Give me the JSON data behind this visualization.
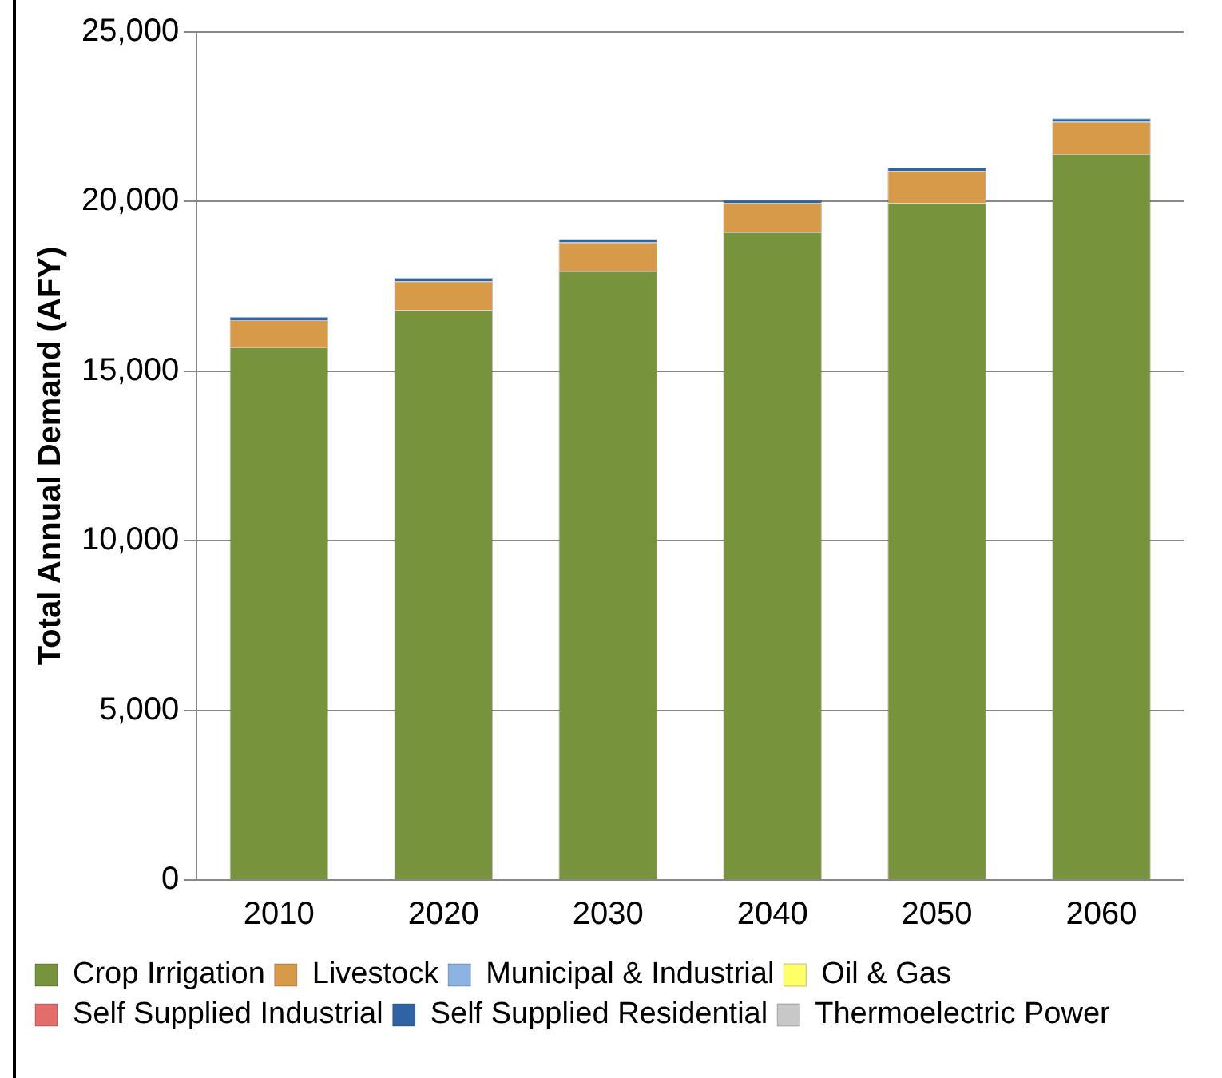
{
  "chart_data": {
    "type": "bar",
    "stacked": true,
    "ylabel": "Total Annual Demand (AFY)",
    "categories": [
      "2010",
      "2020",
      "2030",
      "2040",
      "2050",
      "2060"
    ],
    "series": [
      {
        "name": "Crop Irrigation",
        "color": "#77933c",
        "values": [
          15700,
          16800,
          17950,
          19100,
          19950,
          21400
        ]
      },
      {
        "name": "Livestock",
        "color": "#d69a48",
        "values": [
          800,
          850,
          850,
          850,
          950,
          950
        ]
      },
      {
        "name": "Municipal & Industrial",
        "color": "#8db3e2",
        "values": [
          0,
          0,
          0,
          0,
          0,
          0
        ]
      },
      {
        "name": "Oil & Gas",
        "color": "#ffff66",
        "values": [
          0,
          0,
          0,
          0,
          0,
          0
        ]
      },
      {
        "name": "Self Supplied Industrial",
        "color": "#e46c6a",
        "values": [
          0,
          0,
          0,
          0,
          0,
          0
        ]
      },
      {
        "name": "Self Supplied Residential",
        "color": "#2e63a4",
        "values": [
          100,
          100,
          100,
          100,
          100,
          100
        ]
      },
      {
        "name": "Thermoelectric Power",
        "color": "#c8c8c8",
        "values": [
          0,
          0,
          0,
          0,
          0,
          0
        ]
      }
    ],
    "ylim": [
      0,
      25000
    ],
    "yticks": [
      {
        "value": 0,
        "label": "0"
      },
      {
        "value": 5000,
        "label": "5,000"
      },
      {
        "value": 10000,
        "label": "10,000"
      },
      {
        "value": 15000,
        "label": "15,000"
      },
      {
        "value": 20000,
        "label": "20,000"
      },
      {
        "value": 25000,
        "label": "25,000"
      }
    ],
    "grid": "y",
    "legend": "bottom"
  }
}
